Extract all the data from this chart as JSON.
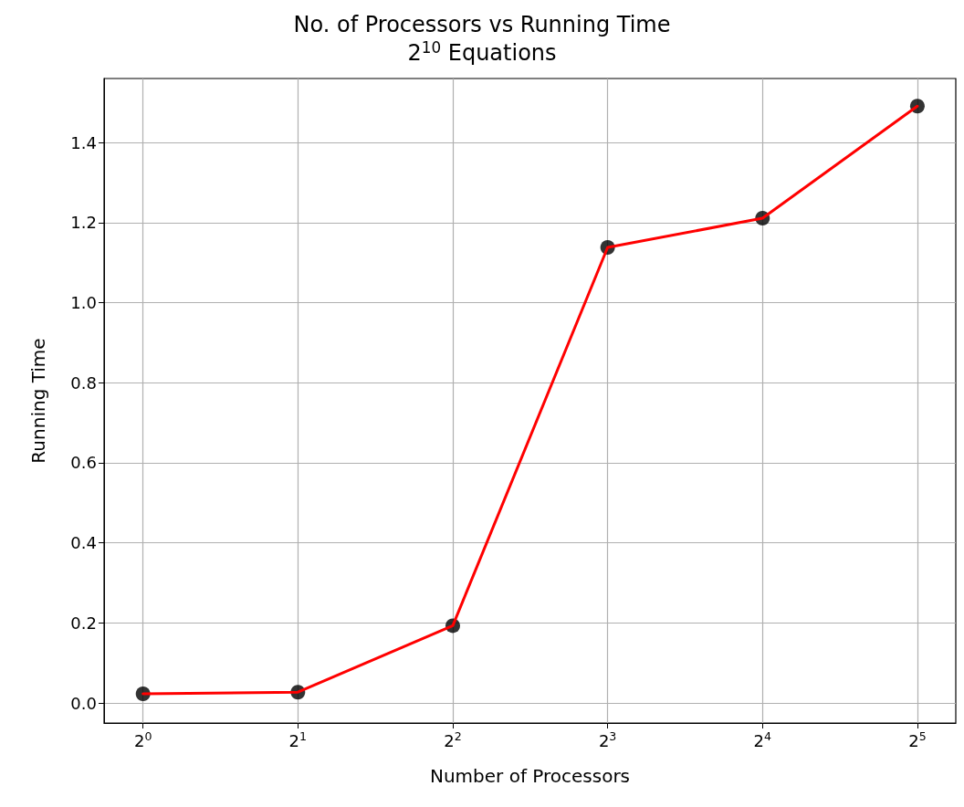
{
  "chart_data": {
    "type": "line",
    "title": "No. of Processors vs Running Time",
    "subtitle": "2$^{10}$ Equations",
    "xlabel": "Number of Processors",
    "ylabel": "Running Time",
    "x": [
      1,
      2,
      4,
      8,
      16,
      32
    ],
    "series": [
      {
        "type": "scatter",
        "color": "#000000",
        "marker": "circle",
        "values": [
          0.023,
          0.027,
          0.193,
          1.138,
          1.211,
          1.491
        ]
      },
      {
        "color": "#ff0000",
        "marker": "none",
        "line_style": "solid",
        "values": [
          0.023,
          0.027,
          0.193,
          1.138,
          1.211,
          1.491
        ]
      }
    ],
    "log": "x",
    "xlim": [
      0.84,
      38
    ],
    "ylim": [
      -0.05,
      1.56
    ],
    "xticks": [
      {
        "value": 1,
        "label": "2$^{0}$"
      },
      {
        "value": 2,
        "label": "2$^{1}$"
      },
      {
        "value": 4,
        "label": "2$^{2}$"
      },
      {
        "value": 8,
        "label": "2$^{3}$"
      },
      {
        "value": 16,
        "label": "2$^{4}$"
      },
      {
        "value": 32,
        "label": "2$^{5}$"
      }
    ],
    "yticks": [
      {
        "value": 0,
        "label": "0.0"
      },
      {
        "value": 0.2,
        "label": "0.2"
      },
      {
        "value": 0.4,
        "label": "0.4"
      },
      {
        "value": 0.6,
        "label": "0.6"
      },
      {
        "value": 0.8,
        "label": "0.8"
      },
      {
        "value": 1.0,
        "label": "1.0"
      },
      {
        "value": 1.2,
        "label": "1.2"
      },
      {
        "value": 1.4,
        "label": "1.4"
      }
    ],
    "grid": true
  }
}
